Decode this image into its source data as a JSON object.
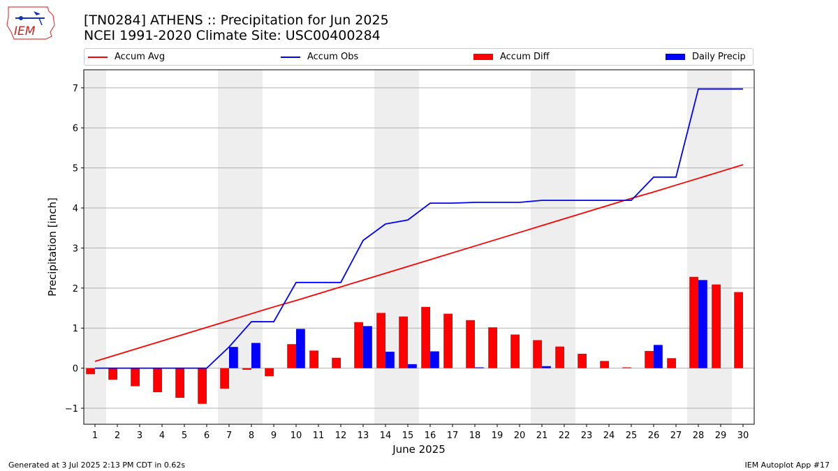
{
  "header": {
    "logo_text": "IEM",
    "title": "[TN0284] ATHENS :: Precipitation for Jun 2025",
    "subtitle": "NCEI 1991-2020 Climate Site: USC00400284"
  },
  "legend": {
    "items": [
      {
        "label": "Accum Avg",
        "kind": "line",
        "color": "#ff0000"
      },
      {
        "label": "Accum Obs",
        "kind": "line",
        "color": "#0000ff"
      },
      {
        "label": "Accum Diff",
        "kind": "patch",
        "color": "#ff0000"
      },
      {
        "label": "Daily Precip",
        "kind": "patch",
        "color": "#0000ff"
      }
    ]
  },
  "footer": {
    "left": "Generated at 3 Jul 2025 2:13 PM CDT in 0.62s",
    "right": "IEM Autoplot App #17"
  },
  "chart_data": {
    "type": "bar",
    "xlabel": "June 2025",
    "ylabel": "Precipitation [inch]",
    "x": [
      1,
      2,
      3,
      4,
      5,
      6,
      7,
      8,
      9,
      10,
      11,
      12,
      13,
      14,
      15,
      16,
      17,
      18,
      19,
      20,
      21,
      22,
      23,
      24,
      25,
      26,
      27,
      28,
      29,
      30
    ],
    "xlim": [
      0.5,
      30.5
    ],
    "ylim": [
      -1.4,
      7.45
    ],
    "yticks": [
      -1,
      0,
      1,
      2,
      3,
      4,
      5,
      6,
      7
    ],
    "grid": true,
    "legend_position": "top",
    "weekend_days": [
      1,
      7,
      8,
      14,
      15,
      21,
      22,
      28,
      29
    ],
    "series": [
      {
        "name": "Accum Avg",
        "type": "line",
        "color": "#ff0000",
        "values": [
          0.17,
          0.34,
          0.51,
          0.68,
          0.85,
          1.02,
          1.19,
          1.36,
          1.53,
          1.69,
          1.86,
          2.03,
          2.2,
          2.37,
          2.54,
          2.71,
          2.88,
          3.05,
          3.22,
          3.39,
          3.56,
          3.73,
          3.9,
          4.07,
          4.24,
          4.4,
          4.57,
          4.74,
          4.91,
          5.08
        ]
      },
      {
        "name": "Accum Obs",
        "type": "line",
        "color": "#0000ff",
        "values": [
          0.0,
          0.0,
          0.0,
          0.0,
          0.0,
          0.0,
          0.53,
          1.16,
          1.16,
          2.14,
          2.14,
          2.14,
          3.19,
          3.6,
          3.7,
          4.12,
          4.12,
          4.14,
          4.14,
          4.14,
          4.19,
          4.19,
          4.19,
          4.19,
          4.19,
          4.77,
          4.77,
          6.97,
          6.97,
          6.97
        ]
      },
      {
        "name": "Accum Diff",
        "type": "bar",
        "color": "#ff0000",
        "values": [
          -0.15,
          -0.29,
          -0.45,
          -0.6,
          -0.74,
          -0.89,
          -0.51,
          -0.04,
          -0.2,
          0.6,
          0.44,
          0.26,
          1.15,
          1.38,
          1.29,
          1.53,
          1.36,
          1.2,
          1.02,
          0.84,
          0.7,
          0.54,
          0.36,
          0.18,
          0.02,
          0.43,
          0.25,
          2.28,
          2.09,
          1.9
        ]
      },
      {
        "name": "Daily Precip",
        "type": "bar",
        "color": "#0000ff",
        "values": [
          0,
          0,
          0,
          0,
          0,
          0,
          0.53,
          0.63,
          0,
          0.98,
          0,
          0,
          1.05,
          0.41,
          0.1,
          0.42,
          0,
          0.02,
          0,
          0,
          0.05,
          0,
          0,
          0,
          0,
          0.58,
          0,
          2.2,
          0,
          0
        ]
      }
    ]
  }
}
